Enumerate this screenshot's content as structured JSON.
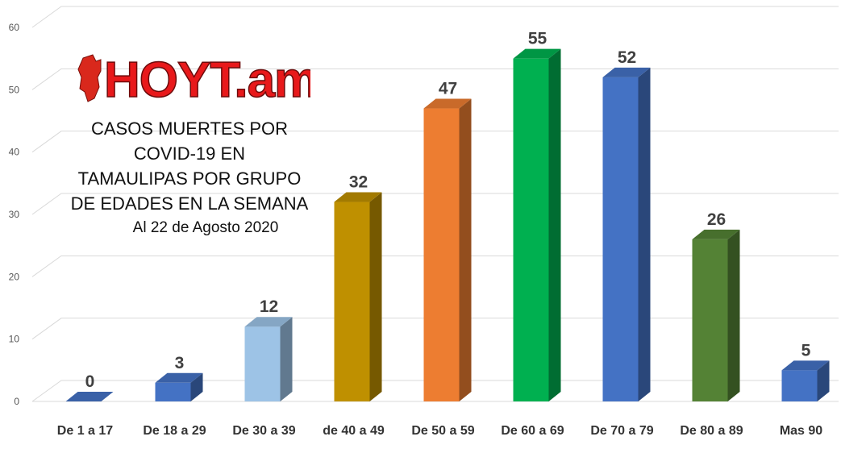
{
  "logo": {
    "text": "HOYT.am",
    "text_color": "#e8191b"
  },
  "chart_data": {
    "type": "bar",
    "title": "CASOS MUERTES POR\nCOVID-19 EN\nTAMAULIPAS POR GRUPO\nDE EDADES EN LA SEMANA",
    "subtitle": "Al 22 de Agosto 2020",
    "categories": [
      "De 1 a 17",
      "De 18 a 29",
      "De 30 a 39",
      "de 40 a 49",
      "De 50 a 59",
      "De 60 a 69",
      "De 70 a 79",
      "De 80 a 89",
      "Mas 90"
    ],
    "values": [
      0,
      3,
      12,
      32,
      47,
      55,
      52,
      26,
      5
    ],
    "colors": [
      "#4472c4",
      "#4472c4",
      "#9dc3e6",
      "#bf9000",
      "#ed7d31",
      "#00b050",
      "#4472c4",
      "#548235",
      "#4472c4"
    ],
    "ylim": [
      0,
      60
    ],
    "yticks": [
      0,
      10,
      20,
      30,
      40,
      50,
      60
    ],
    "grid": true,
    "legend": "none",
    "xlabel": "",
    "ylabel": ""
  }
}
